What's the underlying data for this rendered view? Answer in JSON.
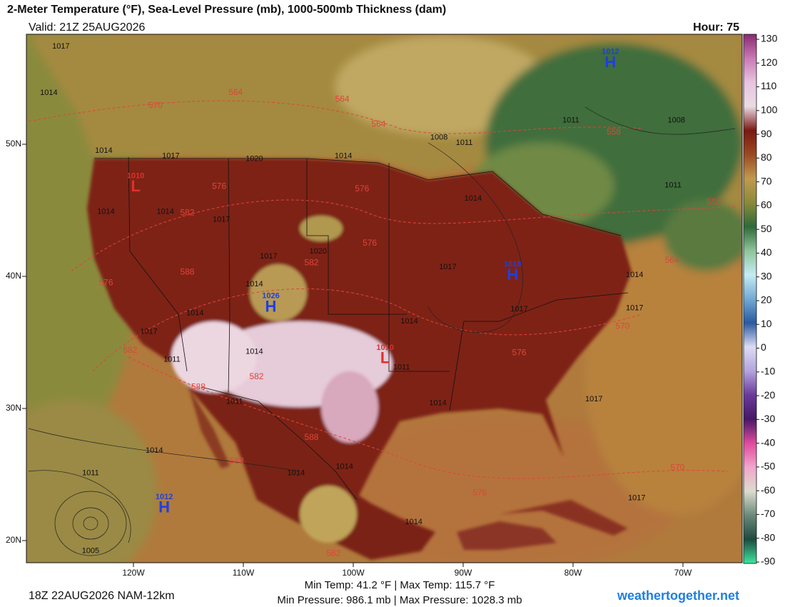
{
  "header": {
    "title": "2-Meter Temperature (°F), Sea-Level Pressure (mb), 1000-500mb Thickness (dam)",
    "valid": "Valid: 21Z 25AUG2026",
    "hour": "Hour: 75"
  },
  "map": {
    "lat_ticks": [
      {
        "value": 50,
        "label": "50N"
      },
      {
        "value": 40,
        "label": "40N"
      },
      {
        "value": 30,
        "label": "30N"
      },
      {
        "value": 20,
        "label": "20N"
      }
    ],
    "lon_ticks": [
      {
        "value": -120,
        "label": "120W"
      },
      {
        "value": -110,
        "label": "110W"
      },
      {
        "value": -100,
        "label": "100W"
      },
      {
        "value": -90,
        "label": "90W"
      },
      {
        "value": -80,
        "label": "80W"
      },
      {
        "value": -70,
        "label": "70W"
      }
    ],
    "pressure_centers": [
      {
        "kind": "H",
        "value": 1012,
        "lat": 56.3,
        "lon": -76.6
      },
      {
        "kind": "L",
        "value": 1010,
        "lat": 46.9,
        "lon": -119.8
      },
      {
        "kind": "H",
        "value": 1018,
        "lat": 40.2,
        "lon": -85.5
      },
      {
        "kind": "H",
        "value": 1026,
        "lat": 37.8,
        "lon": -107.5
      },
      {
        "kind": "L",
        "value": 1010,
        "lat": 33.9,
        "lon": -97.1
      },
      {
        "kind": "H",
        "value": 1012,
        "lat": 22.6,
        "lon": -117.2
      }
    ],
    "isobar_labels": [
      {
        "value": 1017,
        "lat": 57.4,
        "lon": -126.6
      },
      {
        "value": 1014,
        "lat": 53.9,
        "lon": -127.7
      },
      {
        "value": 1014,
        "lat": 49.5,
        "lon": -122.7
      },
      {
        "value": 1017,
        "lat": 49.1,
        "lon": -116.6
      },
      {
        "value": 1020,
        "lat": 48.9,
        "lon": -109.0
      },
      {
        "value": 1014,
        "lat": 49.1,
        "lon": -100.9
      },
      {
        "value": 1008,
        "lat": 50.5,
        "lon": -92.2
      },
      {
        "value": 1011,
        "lat": 50.1,
        "lon": -89.9
      },
      {
        "value": 1014,
        "lat": 44.9,
        "lon": -122.5
      },
      {
        "value": 1014,
        "lat": 44.9,
        "lon": -117.1
      },
      {
        "value": 1017,
        "lat": 44.3,
        "lon": -112.0
      },
      {
        "value": 1017,
        "lat": 41.5,
        "lon": -107.7
      },
      {
        "value": 1020,
        "lat": 41.9,
        "lon": -103.2
      },
      {
        "value": 1017,
        "lat": 40.7,
        "lon": -91.4
      },
      {
        "value": 1014,
        "lat": 39.4,
        "lon": -109.0
      },
      {
        "value": 1014,
        "lat": 37.2,
        "lon": -114.4
      },
      {
        "value": 1017,
        "lat": 35.8,
        "lon": -118.6
      },
      {
        "value": 1011,
        "lat": 33.7,
        "lon": -116.5
      },
      {
        "value": 1014,
        "lat": 34.3,
        "lon": -109.0
      },
      {
        "value": 1011,
        "lat": 33.1,
        "lon": -95.6
      },
      {
        "value": 1014,
        "lat": 36.6,
        "lon": -94.9
      },
      {
        "value": 1017,
        "lat": 37.5,
        "lon": -84.9
      },
      {
        "value": 1014,
        "lat": 40.1,
        "lon": -74.4
      },
      {
        "value": 1017,
        "lat": 37.6,
        "lon": -74.4
      },
      {
        "value": 1011,
        "lat": 30.5,
        "lon": -110.8
      },
      {
        "value": 1014,
        "lat": 30.4,
        "lon": -92.3
      },
      {
        "value": 1017,
        "lat": 30.7,
        "lon": -78.1
      },
      {
        "value": 1014,
        "lat": 26.8,
        "lon": -118.1
      },
      {
        "value": 1011,
        "lat": 25.1,
        "lon": -123.9
      },
      {
        "value": 1005,
        "lat": 19.2,
        "lon": -123.9
      },
      {
        "value": 1014,
        "lat": 25.1,
        "lon": -105.2
      },
      {
        "value": 1014,
        "lat": 25.6,
        "lon": -100.8
      },
      {
        "value": 1014,
        "lat": 21.4,
        "lon": -94.5
      },
      {
        "value": 1017,
        "lat": 23.2,
        "lon": -74.2
      },
      {
        "value": 1008,
        "lat": 51.8,
        "lon": -70.6
      },
      {
        "value": 1011,
        "lat": 46.9,
        "lon": -70.9
      },
      {
        "value": 1014,
        "lat": 45.9,
        "lon": -89.1
      },
      {
        "value": 1011,
        "lat": 51.8,
        "lon": -80.2
      }
    ],
    "thickness_labels": [
      {
        "value": 564,
        "lat": 53.9,
        "lon": -110.7
      },
      {
        "value": 570,
        "lat": 52.9,
        "lon": -118.0
      },
      {
        "value": 564,
        "lat": 53.4,
        "lon": -101.0
      },
      {
        "value": 564,
        "lat": 51.5,
        "lon": -97.7
      },
      {
        "value": 576,
        "lat": 46.8,
        "lon": -112.2
      },
      {
        "value": 576,
        "lat": 46.6,
        "lon": -99.2
      },
      {
        "value": 582,
        "lat": 44.8,
        "lon": -115.1
      },
      {
        "value": 576,
        "lat": 42.5,
        "lon": -98.5
      },
      {
        "value": 582,
        "lat": 41.0,
        "lon": -103.8
      },
      {
        "value": 588,
        "lat": 40.3,
        "lon": -115.1
      },
      {
        "value": 576,
        "lat": 39.5,
        "lon": -122.5
      },
      {
        "value": 582,
        "lat": 34.4,
        "lon": -120.3
      },
      {
        "value": 588,
        "lat": 31.6,
        "lon": -114.1
      },
      {
        "value": 582,
        "lat": 32.4,
        "lon": -108.8
      },
      {
        "value": 576,
        "lat": 34.2,
        "lon": -84.9
      },
      {
        "value": 570,
        "lat": 36.2,
        "lon": -75.5
      },
      {
        "value": 588,
        "lat": 27.8,
        "lon": -103.8
      },
      {
        "value": 582,
        "lat": 26.0,
        "lon": -110.6
      },
      {
        "value": 576,
        "lat": 23.6,
        "lon": -88.5
      },
      {
        "value": 558,
        "lat": 50.9,
        "lon": -76.3
      },
      {
        "value": 558,
        "lat": 45.6,
        "lon": -67.2
      },
      {
        "value": 564,
        "lat": 41.2,
        "lon": -71.0
      },
      {
        "value": 570,
        "lat": 25.5,
        "lon": -70.5
      },
      {
        "value": 582,
        "lat": 19.0,
        "lon": -101.8
      }
    ]
  },
  "colorbar": {
    "lim": [
      -90,
      130
    ],
    "ticks": [
      130,
      120,
      110,
      100,
      90,
      80,
      70,
      60,
      50,
      40,
      30,
      20,
      10,
      0,
      -10,
      -20,
      -30,
      -40,
      -50,
      -60,
      -70,
      -80,
      -90
    ],
    "colors": [
      "#8a2a72",
      "#c87ab4",
      "#e8c4e0",
      "#eadbe4",
      "#7a1812",
      "#9a4a22",
      "#c09a50",
      "#8a8a3a",
      "#2e6a3a",
      "#8ec49a",
      "#c4ecf2",
      "#74aad4",
      "#2a5a9e",
      "#dcdcf4",
      "#b4a4dc",
      "#6a3a9a",
      "#461866",
      "#e04a9c",
      "#f2a6cc",
      "#dcdccc",
      "#6a8a7a",
      "#1e4a3e",
      "#3ee6a0"
    ]
  },
  "stats": {
    "temp": "Min Temp:  41.2 °F | Max Temp: 115.7 °F",
    "pressure": "Min Pressure: 986.1 mb | Max Pressure: 1028.3 mb"
  },
  "footer": {
    "run": "18Z 22AUG2026 NAM-12km",
    "site": "weathertogether.net"
  }
}
